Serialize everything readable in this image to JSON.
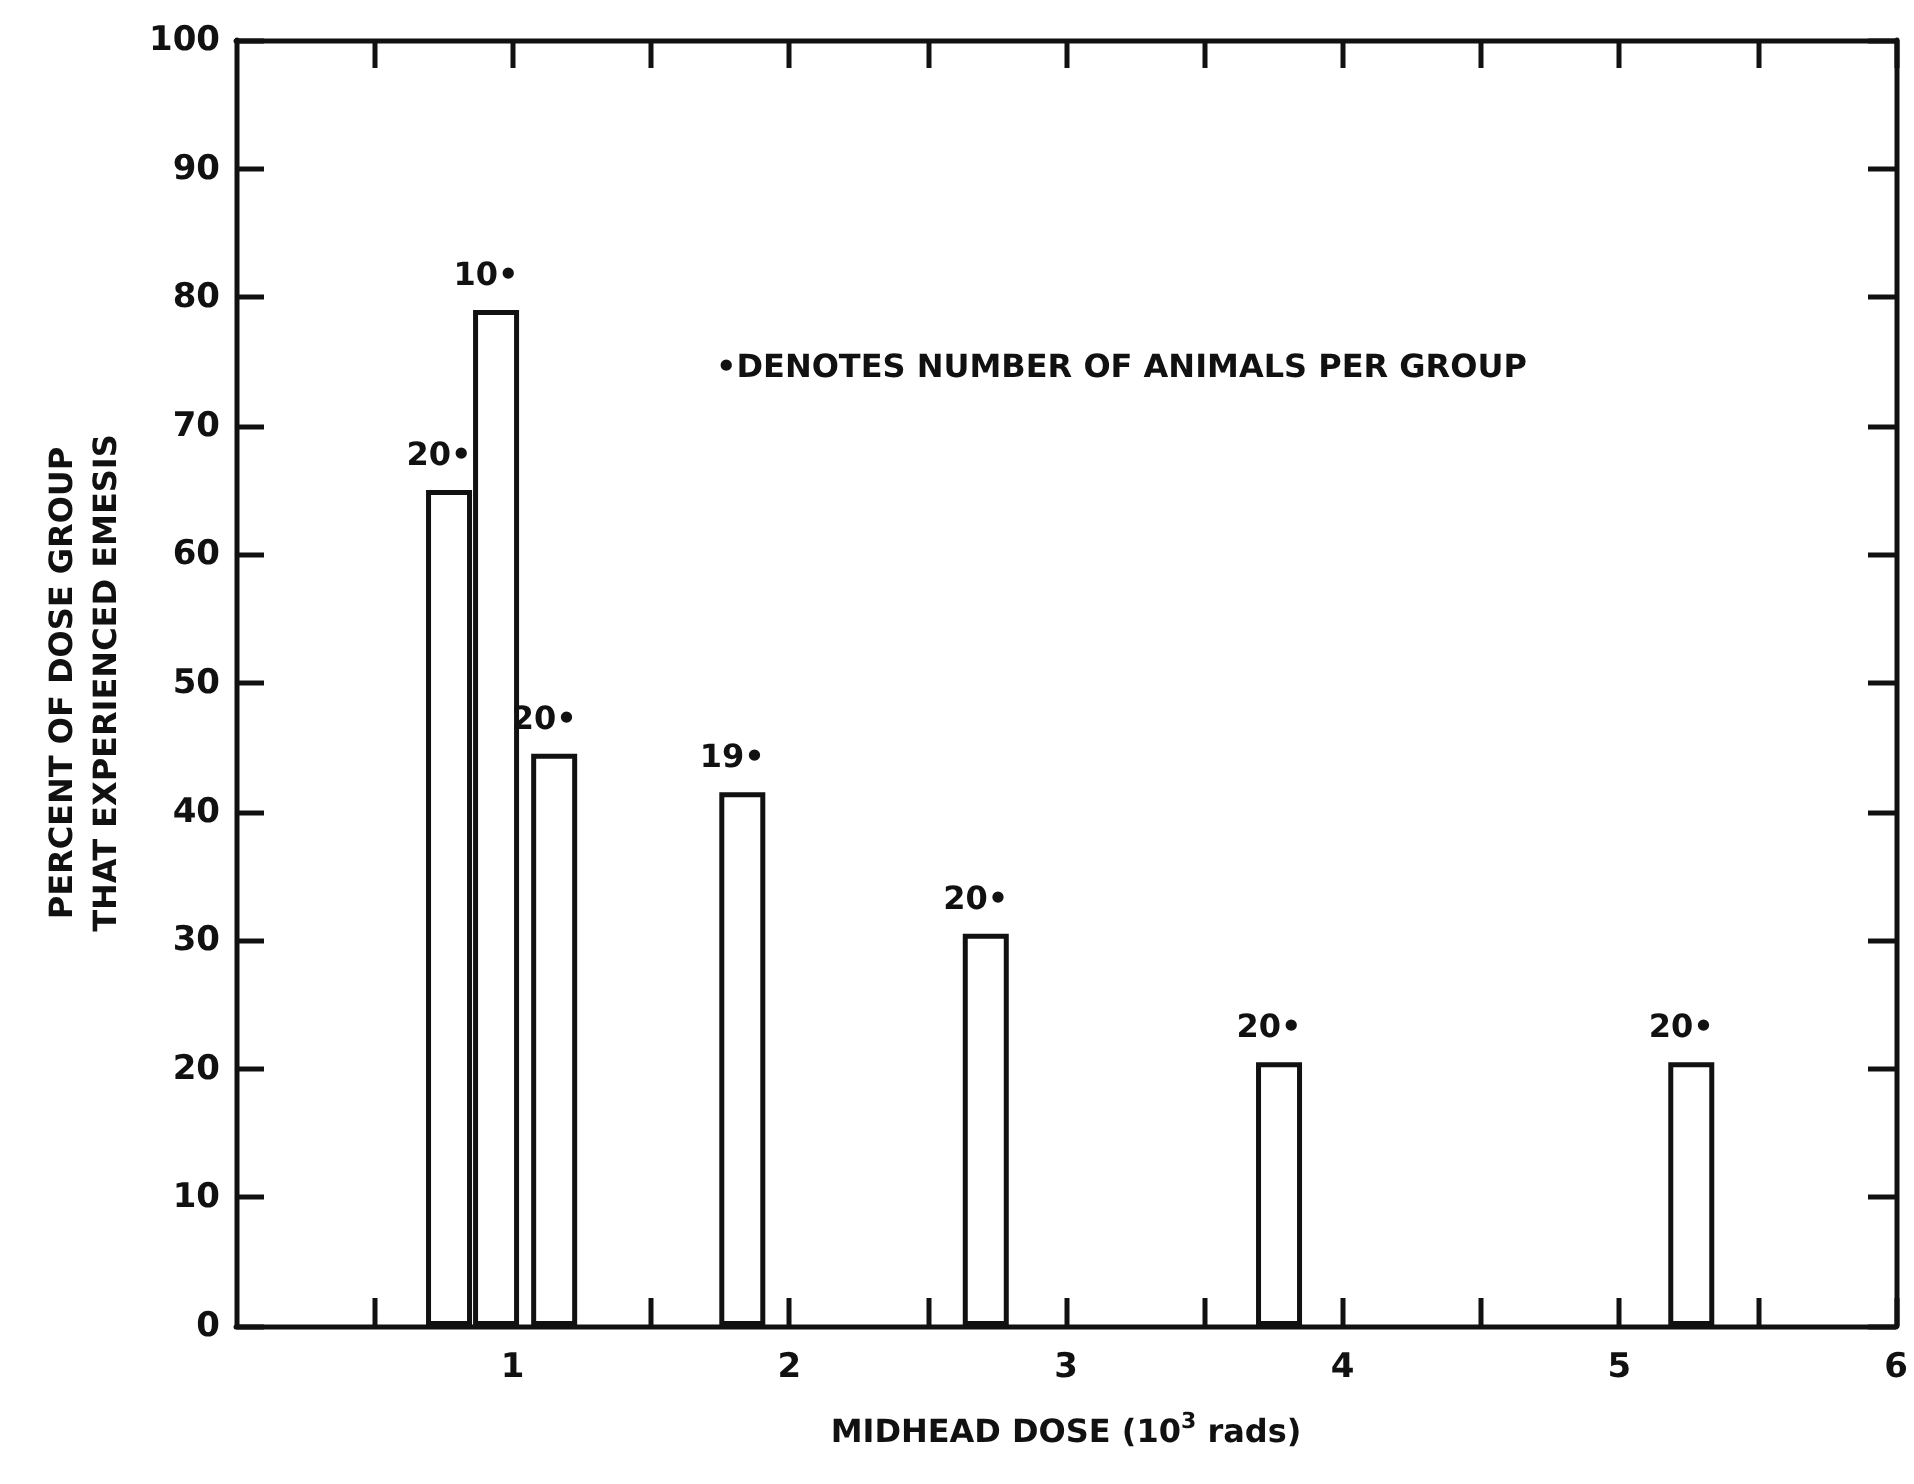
{
  "chart_data": {
    "type": "bar",
    "xlabel": "MIDHEAD DOSE (10$^{3}$ rads)",
    "ylabel": "PERCENT OF DOSE GROUP\nTHAT EXPERIENCED EMESIS",
    "annotations": [
      "•DENOTES NUMBER OF ANIMALS PER GROUP",
      {
        "text": "20•",
        "x": 0.77,
        "y": 65
      },
      {
        "text": "10•",
        "x": 0.94,
        "y": 79
      },
      {
        "text": "20•",
        "x": 1.15,
        "y": 44.5
      },
      {
        "text": "19•",
        "x": 1.83,
        "y": 41.5
      },
      {
        "text": "20•",
        "x": 2.71,
        "y": 30.5
      },
      {
        "text": "20•",
        "x": 3.77,
        "y": 20.5
      },
      {
        "text": "20•",
        "x": 5.26,
        "y": 20.5
      }
    ],
    "x": [
      0.77,
      0.94,
      1.15,
      1.83,
      2.71,
      3.77,
      5.26
    ],
    "values": [
      65,
      79,
      44.5,
      41.5,
      30.5,
      20.5,
      20.5
    ],
    "color": "#ffffff",
    "xlim": [
      0,
      6
    ],
    "xticks": [
      {
        "value": 0.5,
        "label": null
      },
      1,
      {
        "value": 1.5,
        "label": null
      },
      2,
      {
        "value": 2.5,
        "label": null
      },
      3,
      {
        "value": 3.5,
        "label": null
      },
      4,
      {
        "value": 4.5,
        "label": null
      },
      5,
      {
        "value": 5.5,
        "label": null
      },
      6
    ],
    "ylim": [
      0,
      100
    ],
    "yticks": [
      0,
      10,
      20,
      30,
      40,
      50,
      60,
      70,
      80,
      90,
      100
    ],
    "grid": false
  }
}
